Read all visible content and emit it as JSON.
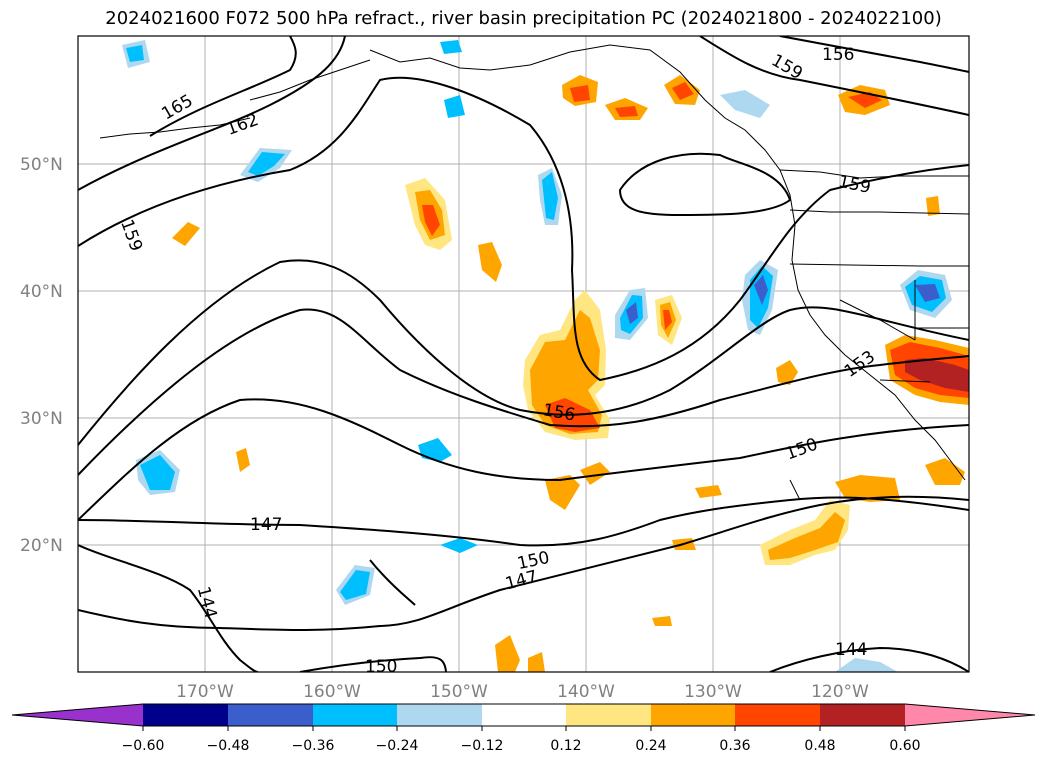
{
  "title": "2024021600 F072 500 hPa refract., river basin precipitation PC (2024021800 - 2024022100)",
  "axes": {
    "lat_labels": [
      "50°N",
      "40°N",
      "30°N",
      "20°N"
    ],
    "lon_labels": [
      "170°W",
      "160°W",
      "150°W",
      "140°W",
      "130°W",
      "120°W"
    ]
  },
  "contour_labels": [
    "165",
    "162",
    "159",
    "156",
    "159",
    "159",
    "153",
    "156",
    "150",
    "147",
    "150",
    "147",
    "144",
    "150",
    "144"
  ],
  "colorbar": {
    "ticks": [
      "−0.60",
      "−0.48",
      "−0.36",
      "−0.24",
      "−0.12",
      "0.12",
      "0.24",
      "0.36",
      "0.48",
      "0.60"
    ],
    "colors": [
      "#9932cc",
      "#00008b",
      "#3a5fcd",
      "#00bfff",
      "#add8f0",
      "#ffffff",
      "#ffe680",
      "#ffa500",
      "#ff4500",
      "#b22222",
      "#ff88aa"
    ]
  },
  "fill_colors": {
    "neg_light": "#add8f0",
    "neg_mid": "#00bfff",
    "neg_dark": "#3a5fcd",
    "pos_light": "#ffe680",
    "pos_mid": "#ffa500",
    "pos_strong": "#ff4500",
    "pos_dark": "#b22222"
  }
}
